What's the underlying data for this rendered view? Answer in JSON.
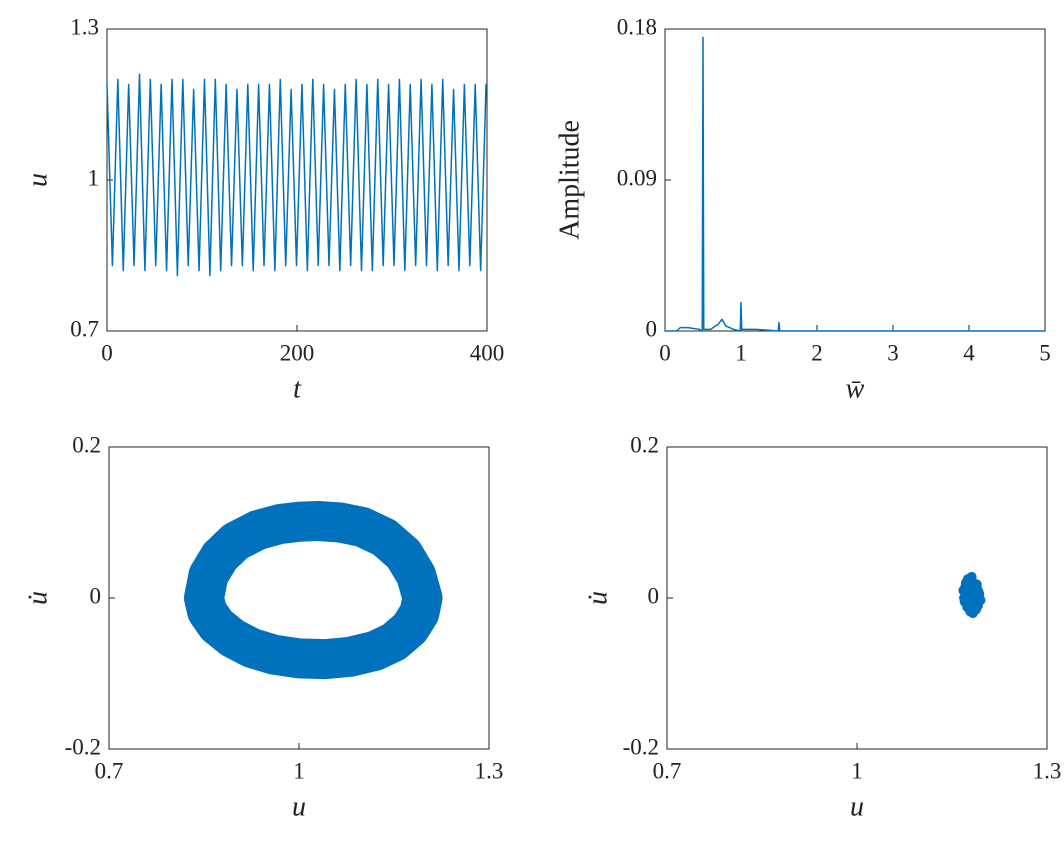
{
  "chart_data": [
    {
      "type": "line",
      "xlabel": "t",
      "ylabel": "u",
      "color": "#0072bd",
      "xlim": [
        0,
        400
      ],
      "xticks": [
        0,
        200,
        400
      ],
      "ylim": [
        0.7,
        1.3
      ],
      "yticks": [
        0.7,
        1,
        1.3
      ],
      "x": [
        0,
        5.7,
        11.4,
        17.1,
        22.8,
        28.5,
        34.2,
        39.9,
        45.6,
        51.3,
        57,
        62.7,
        68.4,
        74.1,
        79.8,
        85.5,
        91.2,
        96.9,
        102.6,
        108.3,
        114,
        119.7,
        125.4,
        131.1,
        136.8,
        142.5,
        148.2,
        153.9,
        159.6,
        165.3,
        171,
        176.7,
        182.4,
        188.1,
        193.8,
        199.5,
        205.2,
        210.9,
        216.6,
        222.3,
        228,
        233.7,
        239.4,
        245.1,
        250.8,
        256.5,
        262.2,
        267.9,
        273.6,
        279.3,
        285,
        290.7,
        296.4,
        302.1,
        307.8,
        313.5,
        319.2,
        324.9,
        330.6,
        336.3,
        342,
        347.7,
        353.4,
        359.1,
        364.8,
        370.5,
        376.2,
        381.9,
        387.6,
        393.3,
        399
      ],
      "values": [
        1.19,
        0.83,
        1.2,
        0.82,
        1.19,
        0.83,
        1.21,
        0.82,
        1.2,
        0.83,
        1.19,
        0.82,
        1.2,
        0.81,
        1.2,
        0.83,
        1.18,
        0.82,
        1.2,
        0.81,
        1.2,
        0.82,
        1.19,
        0.83,
        1.18,
        0.83,
        1.19,
        0.82,
        1.19,
        0.83,
        1.19,
        0.82,
        1.2,
        0.83,
        1.18,
        0.83,
        1.19,
        0.82,
        1.2,
        0.83,
        1.19,
        0.83,
        1.18,
        0.82,
        1.19,
        0.83,
        1.2,
        0.82,
        1.19,
        0.82,
        1.2,
        0.83,
        1.19,
        0.83,
        1.2,
        0.82,
        1.19,
        0.83,
        1.2,
        0.83,
        1.19,
        0.82,
        1.2,
        0.83,
        1.18,
        0.82,
        1.19,
        0.83,
        1.19,
        0.82,
        1.19
      ]
    },
    {
      "type": "line",
      "xlabel": "w̄",
      "ylabel": "Amplitude",
      "color": "#0072bd",
      "xlim": [
        0,
        5
      ],
      "xticks": [
        0,
        1,
        2,
        3,
        4,
        5
      ],
      "ylim": [
        0,
        0.18
      ],
      "yticks": [
        0,
        0.09,
        0.18
      ],
      "x": [
        0,
        0.15,
        0.2,
        0.3,
        0.45,
        0.49,
        0.5,
        0.51,
        0.6,
        0.7,
        0.75,
        0.8,
        0.9,
        0.99,
        1.0,
        1.01,
        1.2,
        1.49,
        1.5,
        1.51,
        2,
        5
      ],
      "values": [
        0,
        0,
        0.002,
        0.002,
        0.001,
        0,
        0.175,
        0.001,
        0.001,
        0.004,
        0.007,
        0.003,
        0.001,
        0,
        0.017,
        0.001,
        0.001,
        0,
        0.005,
        0,
        0,
        0
      ]
    },
    {
      "type": "line",
      "xlabel": "u",
      "ylabel": "u̇",
      "color": "#0072bd",
      "xlim": [
        0.7,
        1.3
      ],
      "xticks": [
        0.7,
        1,
        1.3
      ],
      "ylim": [
        -0.2,
        0.2
      ],
      "yticks": [
        -0.2,
        0,
        0.2
      ],
      "x": [
        0.85,
        0.857,
        0.875,
        0.9,
        0.935,
        0.97,
        1.0,
        1.03,
        1.065,
        1.1,
        1.135,
        1.165,
        1.185,
        1.195,
        1.19,
        1.175,
        1.15,
        1.12,
        1.08,
        1.04,
        1.0,
        0.96,
        0.925,
        0.895,
        0.87,
        0.855,
        0.85
      ],
      "values": [
        0.0,
        0.03,
        0.055,
        0.075,
        0.09,
        0.098,
        0.101,
        0.102,
        0.1,
        0.094,
        0.08,
        0.058,
        0.03,
        0.0,
        -0.02,
        -0.04,
        -0.058,
        -0.07,
        -0.078,
        -0.081,
        -0.08,
        -0.075,
        -0.066,
        -0.053,
        -0.036,
        -0.018,
        0.0
      ]
    },
    {
      "type": "scatter",
      "xlabel": "u",
      "ylabel": "u̇",
      "color": "#0072bd",
      "xlim": [
        0.7,
        1.3
      ],
      "xticks": [
        0.7,
        1,
        1.3
      ],
      "ylim": [
        -0.2,
        0.2
      ],
      "yticks": [
        -0.2,
        0,
        0.2
      ],
      "x": [
        1.168,
        1.172,
        1.175,
        1.178,
        1.181,
        1.184,
        1.187,
        1.19,
        1.193,
        1.17,
        1.174,
        1.179,
        1.183,
        1.188,
        1.191,
        1.195,
        1.169,
        1.173,
        1.177,
        1.182,
        1.186,
        1.19,
        1.176,
        1.18,
        1.185,
        1.171,
        1.189,
        1.183,
        1.178,
        1.192
      ],
      "values": [
        0.01,
        0.02,
        0.025,
        0.022,
        0.028,
        0.02,
        0.015,
        0.012,
        0.005,
        -0.005,
        -0.012,
        -0.018,
        -0.02,
        -0.015,
        -0.01,
        -0.003,
        0.0,
        0.008,
        0.012,
        0.006,
        0.0,
        -0.005,
        -0.008,
        -0.012,
        0.01,
        0.015,
        0.018,
        0.002,
        -0.002,
        0.008
      ]
    }
  ]
}
